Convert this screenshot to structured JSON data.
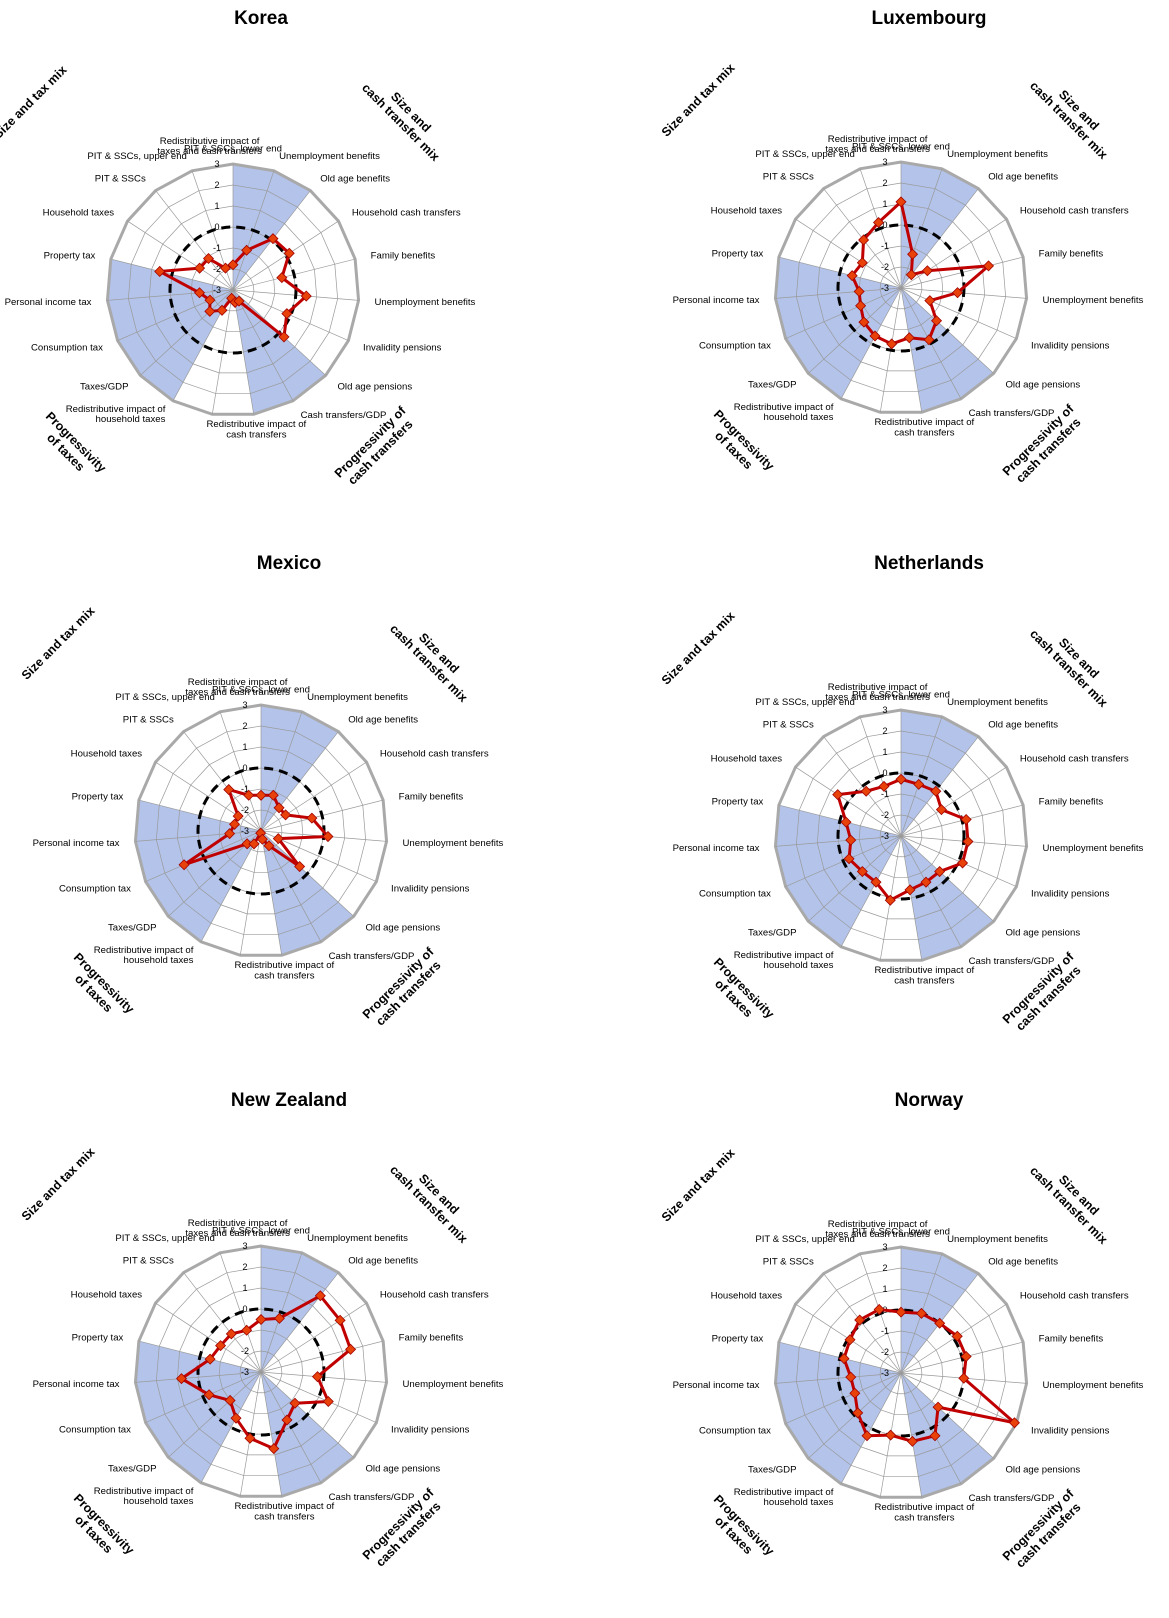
{
  "chart_data": {
    "type": "radar",
    "scale": {
      "min": -3,
      "max": 3,
      "ticks": [
        "3",
        "2",
        "1",
        "0",
        "-1",
        "-2",
        "-3"
      ]
    },
    "categories": [
      "Redistributive impact of taxes and cash transfers",
      "Redistributive impact of cash transfers",
      "Cash transfers/GDP",
      "Old age pensions",
      "Invalidity pensions",
      "Unemployment benefits",
      "Family benefits",
      "Household cash transfers",
      "Old age benefits",
      "Unemployment benefits",
      "PIT & SSCs, lower end",
      "PIT & SSCs, upper end",
      "PIT & SSCs",
      "Household taxes",
      "Property tax",
      "Personal income tax",
      "Consumption tax",
      "Taxes/GDP",
      "Redistributive impact of household taxes"
    ],
    "category_lines": [
      [
        "Redistributive impact of",
        "taxes and cash transfers"
      ],
      [
        "Redistributive impact of",
        "cash transfers"
      ],
      [
        "Cash transfers/GDP"
      ],
      [
        "Old age pensions"
      ],
      [
        "Invalidity pensions"
      ],
      [
        "Unemployment benefits"
      ],
      [
        "Family benefits"
      ],
      [
        "Household cash transfers"
      ],
      [
        "Old age benefits"
      ],
      [
        "Unemployment benefits"
      ],
      [
        "PIT & SSCs, lower end"
      ],
      [
        "PIT & SSCs, upper end"
      ],
      [
        "PIT & SSCs"
      ],
      [
        "Household taxes"
      ],
      [
        "Property tax"
      ],
      [
        "Personal income tax"
      ],
      [
        "Consumption tax"
      ],
      [
        "Taxes/GDP"
      ],
      [
        "Redistributive impact of",
        "household taxes"
      ]
    ],
    "groups": [
      {
        "lines": [
          "Size and tax mix"
        ],
        "sectors": "Taxes/GDP to Redistributive impact of household taxes, Property tax to Consumption tax"
      },
      {
        "lines": [
          "Size and",
          "cash transfer mix"
        ],
        "sectors": "Redistributive impact of cash transfers to Old age pensions"
      },
      {
        "lines": [
          "Progressivity of",
          "cash transfers"
        ],
        "sectors": "Old age benefits to Unemployment benefits"
      },
      {
        "lines": [
          "Progressivity",
          "of taxes"
        ],
        "sectors": "PIT & SSCs"
      }
    ],
    "reference_line": {
      "value": 0,
      "style": "dashed",
      "color": "#000000"
    },
    "colors": {
      "series_line": "#c00000",
      "marker_fill": "#e8420a",
      "marker_stroke": "#a00000",
      "shaded_sector": "#b3c3ea",
      "grid": "#9a9a9a",
      "outer_ring": "#a9a9a9"
    },
    "charts": [
      {
        "title": "Korea",
        "values": [
          -2.6,
          -2.4,
          -2.4,
          0.3,
          -0.2,
          0.5,
          -0.6,
          0.2,
          0.1,
          -1.0,
          -1.8,
          -1.9,
          -1.1,
          -1.1,
          0.6,
          -1.4,
          -1.8,
          -1.5,
          -1.9
        ]
      },
      {
        "title": "Luxembourg",
        "values": [
          -0.3,
          -0.6,
          -0.2,
          -0.7,
          -1.5,
          -0.3,
          1.3,
          -1.5,
          -2.2,
          -1.3,
          1.1,
          0.3,
          -0.1,
          -0.8,
          -0.6,
          -1.0,
          -0.9,
          -0.6,
          -0.4
        ]
      },
      {
        "title": "Mexico",
        "values": [
          -2.9,
          -2.6,
          -2.2,
          -0.5,
          -2.1,
          0.2,
          -0.5,
          -1.6,
          -1.6,
          -1.2,
          -1.3,
          -1.2,
          -0.5,
          -1.7,
          -1.7,
          -1.5,
          1.0,
          -2.1,
          -2.3
        ]
      },
      {
        "title": "Netherlands",
        "values": [
          0.1,
          -0.4,
          -0.5,
          -0.5,
          0.2,
          0.2,
          0.2,
          -0.7,
          -0.3,
          -0.4,
          -0.3,
          -0.5,
          -0.3,
          0.6,
          -0.3,
          -0.6,
          -0.3,
          -0.5,
          -0.5
        ]
      },
      {
        "title": "New Zealand",
        "values": [
          0.2,
          0.7,
          -0.4,
          -0.8,
          0.5,
          -0.3,
          1.4,
          1.5,
          1.6,
          -0.3,
          -0.5,
          -0.9,
          -0.7,
          -0.7,
          -0.5,
          0.8,
          -0.3,
          -1.0,
          -0.5
        ]
      },
      {
        "title": "Norway",
        "values": [
          0.0,
          0.3,
          0.4,
          -0.6,
          2.9,
          0.0,
          0.2,
          0.2,
          0.0,
          0.0,
          -0.1,
          0.2,
          0.2,
          -0.1,
          -0.2,
          -0.6,
          -0.6,
          -0.2,
          0.4
        ]
      }
    ]
  }
}
